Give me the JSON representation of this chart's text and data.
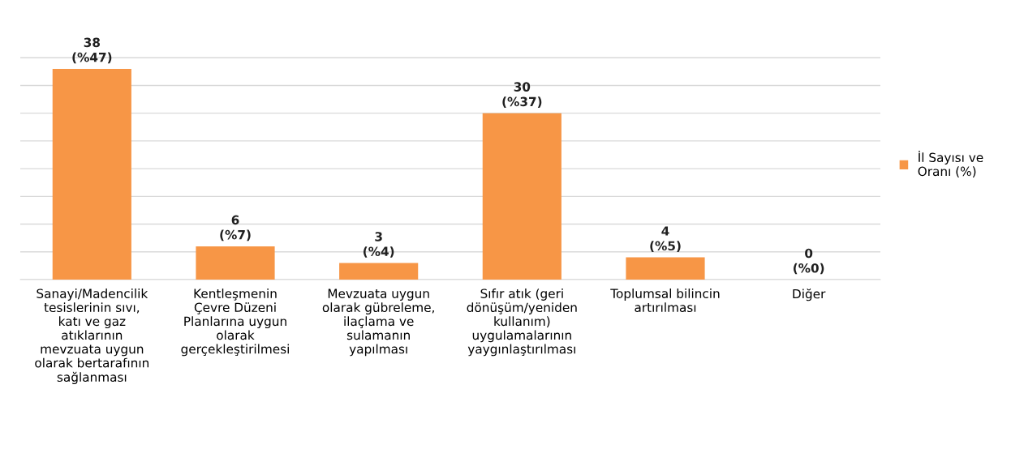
{
  "chart_data": {
    "type": "bar",
    "categories": [
      "Sanayi/Madencilik\ntesislerinin sıvı,\nkatı ve gaz\natıklarının\nmevzuata uygun\nolarak bertarafının\nsağlanması",
      "Kentleşmenin\nÇevre Düzeni\nPlanlarına uygun\nolarak\ngerçekleştirilmesi",
      "Mevzuata uygun\nolarak gübreleme,\nilaçlama ve\nsulamanın\nyapılması",
      "Sıfır atık (geri\ndönüşüm/yeniden\nkullanım)\nuygulamalarının\nyaygınlaştırılması",
      "Toplumsal bilincin\nartırılması",
      "Diğer"
    ],
    "series": [
      {
        "name": "İl Sayısı ve Oranı (%)",
        "color": "#f79646",
        "values": [
          38,
          6,
          3,
          30,
          4,
          0
        ],
        "value_labels": [
          "38\n(%47)",
          "6\n(%7)",
          "3\n(%4)",
          "30\n(%37)",
          "4\n(%5)",
          "0\n(%0)"
        ]
      }
    ],
    "grid": "y",
    "legend": "right",
    "tick_labels": "x"
  }
}
